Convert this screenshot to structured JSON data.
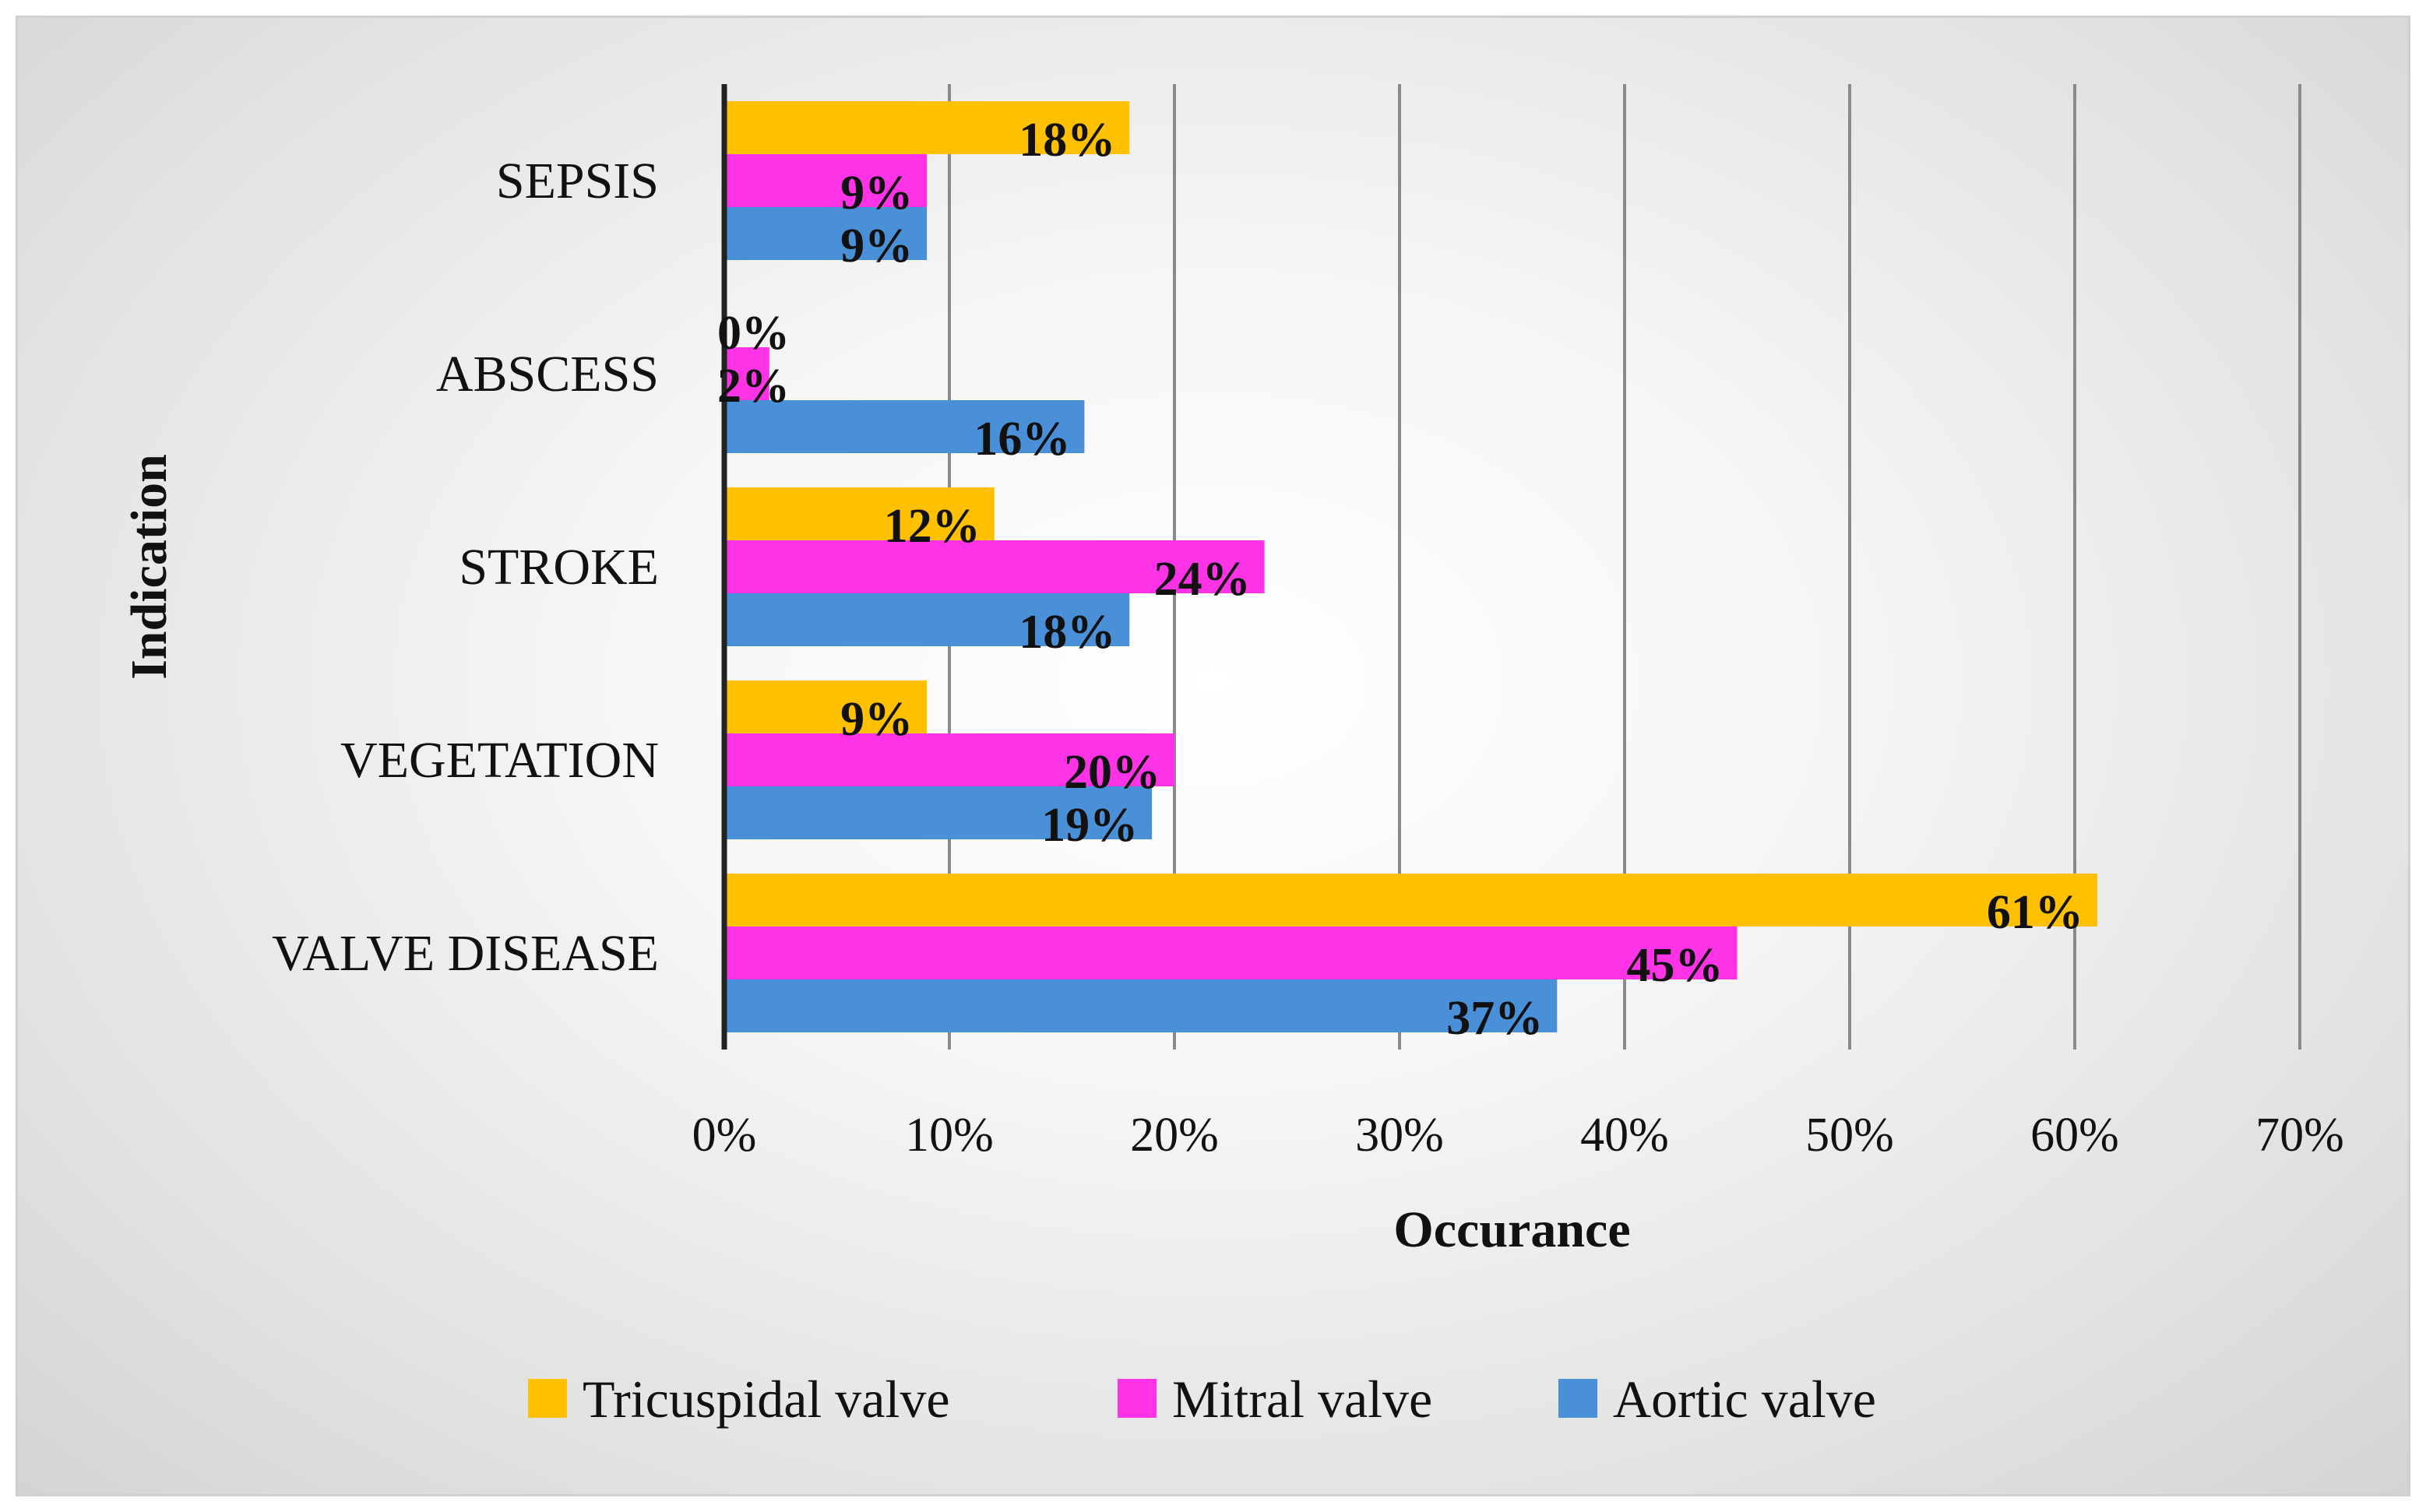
{
  "chart_data": {
    "type": "bar",
    "orientation": "horizontal",
    "categories": [
      "SEPSIS",
      "ABSCESS",
      "STROKE",
      "VEGETATION",
      "VALVE DISEASE"
    ],
    "series": [
      {
        "name": "Tricuspidal valve",
        "color": "#FFC000",
        "values": [
          18,
          0,
          12,
          9,
          61
        ],
        "labels": [
          "18%",
          "0%",
          "12%",
          "9%",
          "61%"
        ]
      },
      {
        "name": "Mitral valve",
        "color": "#FF33E6",
        "values": [
          9,
          2,
          24,
          20,
          45
        ],
        "labels": [
          "9%",
          "2%",
          "24%",
          "20%",
          "45%"
        ]
      },
      {
        "name": "Aortic valve",
        "color": "#4A90D9",
        "values": [
          9,
          16,
          18,
          19,
          37
        ],
        "labels": [
          "9%",
          "16%",
          "18%",
          "19%",
          "37%"
        ]
      }
    ],
    "xlim": [
      0,
      70
    ],
    "xticks": [
      0,
      10,
      20,
      30,
      40,
      50,
      60,
      70
    ],
    "xtick_labels": [
      "0%",
      "10%",
      "20%",
      "30%",
      "40%",
      "50%",
      "60%",
      "70%"
    ],
    "xlabel": "Occurance",
    "ylabel": "Indication",
    "grid": true,
    "legend_position": "bottom"
  }
}
